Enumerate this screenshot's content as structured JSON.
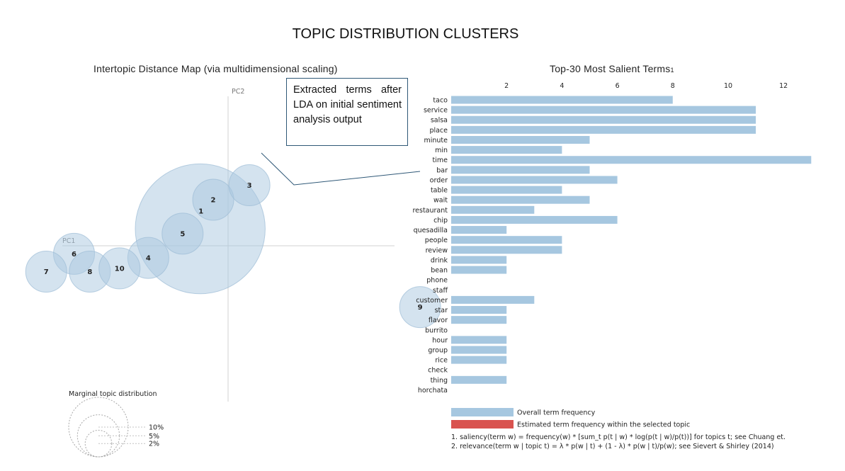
{
  "page_title": "TOPIC DISTRIBUTION CLUSTERS",
  "callout_text": "Extracted terms after LDA on initial sentiment analysis output",
  "colors": {
    "bubble": "#a9c8df",
    "bar_overall": "#a6c7e0",
    "bar_estimated": "#d9534f",
    "axis_line": "#d0d0d0",
    "callout_border": "#2f5877"
  },
  "chart_data": [
    {
      "type": "scatter",
      "title": "Intertopic Distance Map (via multidimensional scaling)",
      "xlabel": "PC1",
      "ylabel": "PC2",
      "xlim": [
        -1,
        1
      ],
      "ylim": [
        -1,
        1
      ],
      "grid": false,
      "topics": [
        {
          "label": "1",
          "x": -0.3,
          "y": 0.21,
          "size": 20.0
        },
        {
          "label": "2",
          "x": -0.16,
          "y": 0.57,
          "size": 2.0
        },
        {
          "label": "3",
          "x": 0.23,
          "y": 0.75,
          "size": 2.0
        },
        {
          "label": "4",
          "x": -0.86,
          "y": -0.15,
          "size": 2.0
        },
        {
          "label": "5",
          "x": -0.49,
          "y": 0.15,
          "size": 2.0
        },
        {
          "label": "6",
          "x": -1.66,
          "y": -0.1,
          "size": 2.0
        },
        {
          "label": "7",
          "x": -1.96,
          "y": -0.32,
          "size": 2.0
        },
        {
          "label": "8",
          "x": -1.49,
          "y": -0.32,
          "size": 2.0
        },
        {
          "label": "9",
          "x": 2.07,
          "y": -0.76,
          "size": 2.0
        },
        {
          "label": "10",
          "x": -1.17,
          "y": -0.28,
          "size": 2.0
        }
      ],
      "marginal_legend": {
        "title": "Marginal topic distribution",
        "entries": [
          {
            "label": "2%",
            "value": 2
          },
          {
            "label": "5%",
            "value": 5
          },
          {
            "label": "10%",
            "value": 10
          }
        ]
      }
    },
    {
      "type": "bar",
      "orientation": "horizontal",
      "title": "Top-30 Most Salient Terms",
      "title_footnote": "1",
      "xlim": [
        0,
        13
      ],
      "xticks": [
        2,
        4,
        6,
        8,
        10,
        12
      ],
      "categories": [
        "taco",
        "service",
        "salsa",
        "place",
        "minute",
        "min",
        "time",
        "bar",
        "order",
        "table",
        "wait",
        "restaurant",
        "chip",
        "quesadilla",
        "people",
        "review",
        "drink",
        "bean",
        "phone",
        "staff",
        "customer",
        "star",
        "flavor",
        "burrito",
        "hour",
        "group",
        "rice",
        "check",
        "thing",
        "horchata"
      ],
      "series": [
        {
          "name": "Overall term frequency",
          "values": [
            8,
            11,
            11,
            11,
            5,
            4,
            13,
            5,
            6,
            4,
            5,
            3,
            6,
            2,
            4,
            4,
            2,
            2,
            0,
            0,
            3,
            2,
            2,
            0,
            2,
            2,
            2,
            0,
            2,
            0
          ]
        }
      ],
      "legend": [
        {
          "label": "Overall term frequency",
          "color_key": "bar_overall"
        },
        {
          "label": "Estimated term frequency within the selected topic",
          "color_key": "bar_estimated"
        }
      ],
      "footnotes": [
        "1. saliency(term w) = frequency(w) * [sum_t p(t | w) * log(p(t | w)/p(t))] for topics t; see Chuang et.",
        "2. relevance(term w | topic t) = λ * p(w | t) + (1 - λ) * p(w | t)/p(w); see Sievert & Shirley (2014)"
      ]
    }
  ]
}
